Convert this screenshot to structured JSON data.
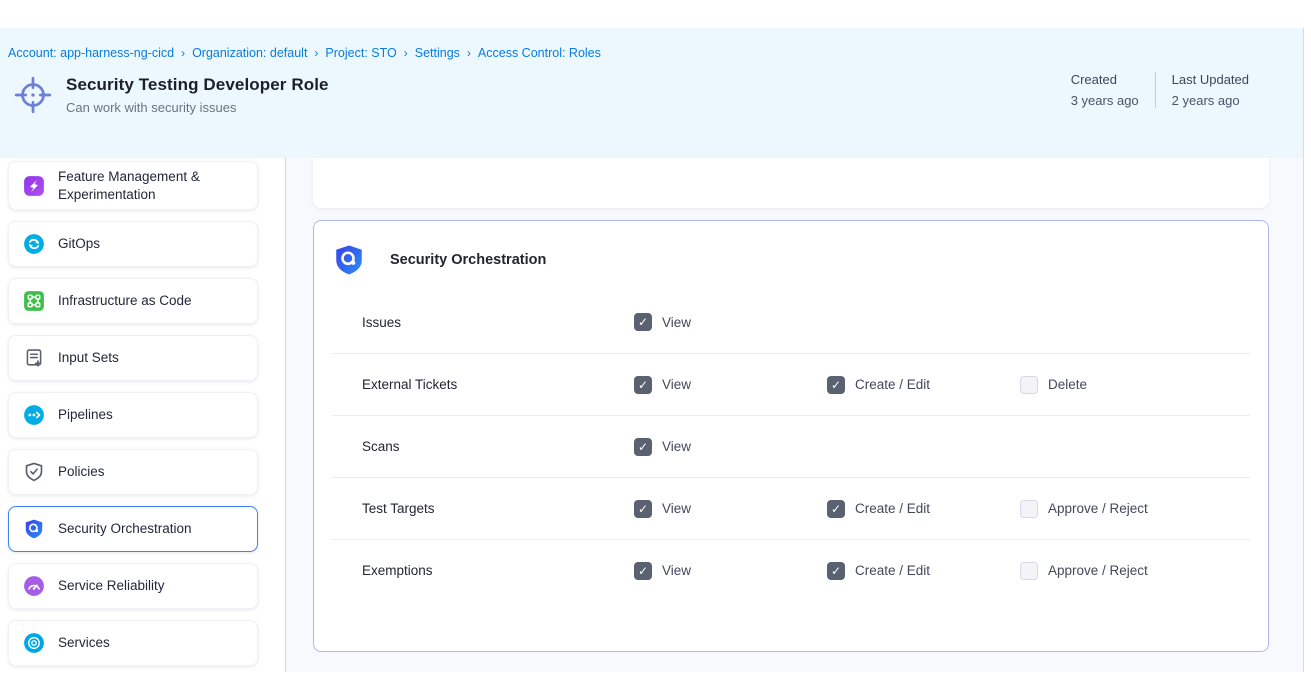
{
  "breadcrumb": {
    "separator": "›",
    "items": [
      "Account: app-harness-ng-cicd",
      "Organization: default",
      "Project: STO",
      "Settings",
      "Access Control: Roles"
    ]
  },
  "header": {
    "icon": "target-icon",
    "title": "Security Testing Developer Role",
    "subtitle": "Can work with security issues",
    "meta": [
      {
        "label": "Created",
        "value": "3 years ago"
      },
      {
        "label": "Last Updated",
        "value": "2 years ago"
      }
    ]
  },
  "sidebar": {
    "items": [
      {
        "label": "Feature Management & Experimentation",
        "icon": "feature-flags-icon",
        "selected": false
      },
      {
        "label": "GitOps",
        "icon": "gitops-icon",
        "selected": false
      },
      {
        "label": "Infrastructure as Code",
        "icon": "iac-icon",
        "selected": false
      },
      {
        "label": "Input Sets",
        "icon": "input-sets-icon",
        "selected": false
      },
      {
        "label": "Pipelines",
        "icon": "pipelines-icon",
        "selected": false
      },
      {
        "label": "Policies",
        "icon": "policies-icon",
        "selected": false
      },
      {
        "label": "Security Orchestration",
        "icon": "security-orchestration-icon",
        "selected": true
      },
      {
        "label": "Service Reliability",
        "icon": "service-reliability-icon",
        "selected": false
      },
      {
        "label": "Services",
        "icon": "services-icon",
        "selected": false
      }
    ]
  },
  "main": {
    "panel": {
      "icon": "security-orchestration-icon",
      "title": "Security Orchestration",
      "rows": [
        {
          "label": "Issues",
          "permissions": [
            {
              "label": "View",
              "checked": true
            }
          ]
        },
        {
          "label": "External Tickets",
          "permissions": [
            {
              "label": "View",
              "checked": true
            },
            {
              "label": "Create / Edit",
              "checked": true
            },
            {
              "label": "Delete",
              "checked": false
            }
          ]
        },
        {
          "label": "Scans",
          "permissions": [
            {
              "label": "View",
              "checked": true
            }
          ]
        },
        {
          "label": "Test Targets",
          "permissions": [
            {
              "label": "View",
              "checked": true
            },
            {
              "label": "Create / Edit",
              "checked": true
            },
            {
              "label": "Approve / Reject",
              "checked": false
            }
          ]
        },
        {
          "label": "Exemptions",
          "permissions": [
            {
              "label": "View",
              "checked": true
            },
            {
              "label": "Create / Edit",
              "checked": true
            },
            {
              "label": "Approve / Reject",
              "checked": false
            }
          ]
        }
      ]
    }
  },
  "colors": {
    "accent_blue": "#0a7be0",
    "header_bg": "#ecf8fd",
    "selected_card_border": "#3b82f6",
    "panel_border": "#aeb7f0",
    "checkbox_checked": "#5a6170",
    "main_bg": "#f8f9fd"
  }
}
